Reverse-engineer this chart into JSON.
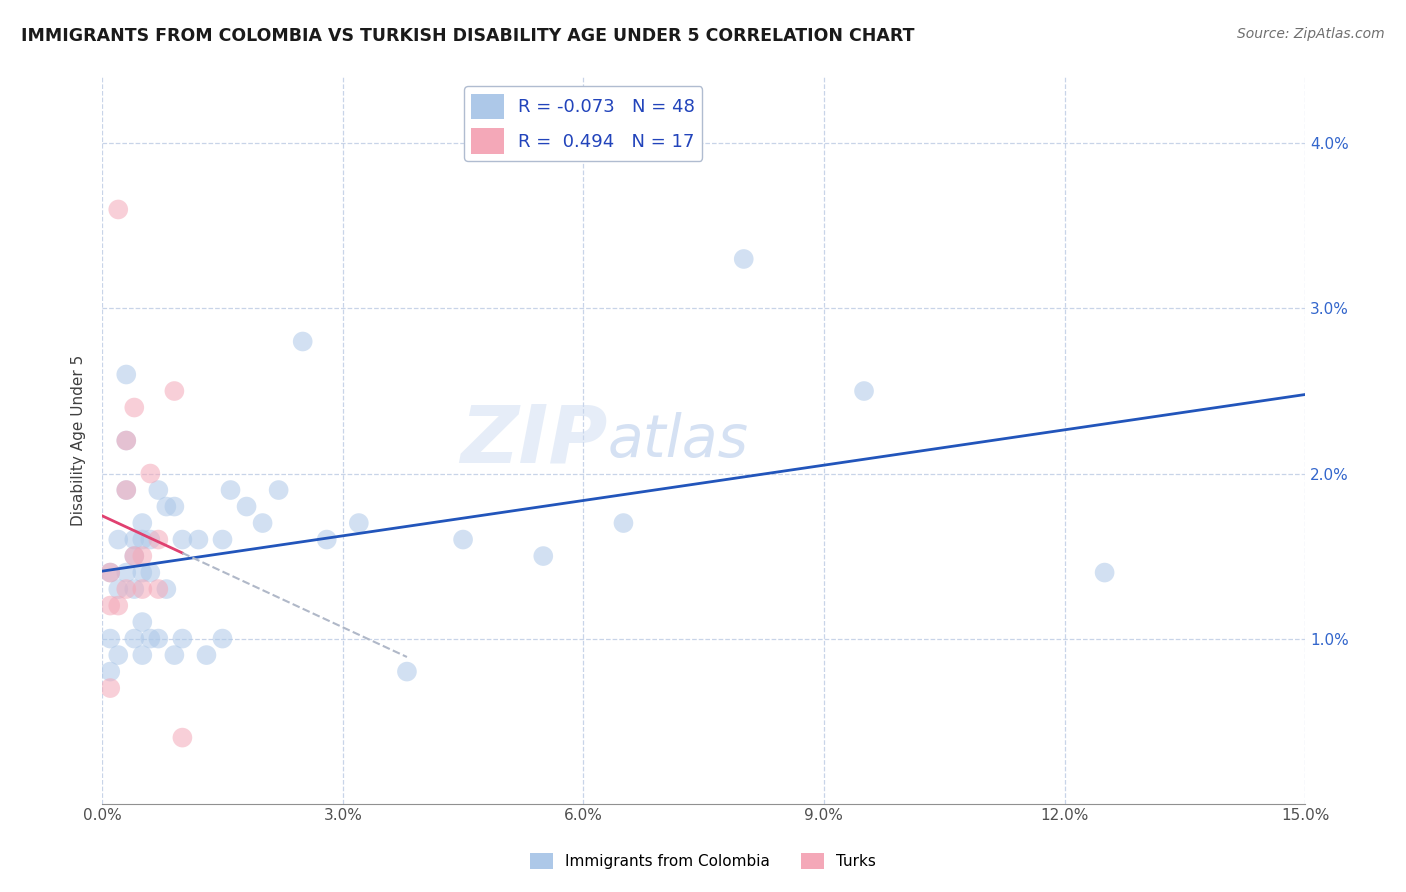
{
  "title": "IMMIGRANTS FROM COLOMBIA VS TURKISH DISABILITY AGE UNDER 5 CORRELATION CHART",
  "source": "Source: ZipAtlas.com",
  "ylabel": "Disability Age Under 5",
  "xlim": [
    0.0,
    0.15
  ],
  "ylim": [
    0.0,
    0.044
  ],
  "xticks": [
    0.0,
    0.03,
    0.06,
    0.09,
    0.12,
    0.15
  ],
  "yticks": [
    0.01,
    0.02,
    0.03,
    0.04
  ],
  "ytick_labels": [
    "1.0%",
    "2.0%",
    "3.0%",
    "4.0%"
  ],
  "xtick_labels": [
    "0.0%",
    "3.0%",
    "6.0%",
    "9.0%",
    "12.0%",
    "15.0%"
  ],
  "blue_R": -0.073,
  "blue_N": 48,
  "pink_R": 0.494,
  "pink_N": 17,
  "blue_color": "#adc8e8",
  "pink_color": "#f4a8b8",
  "blue_line_color": "#2255bb",
  "pink_line_color": "#e04070",
  "watermark_zip": "ZIP",
  "watermark_atlas": "atlas",
  "legend_label_blue": "Immigrants from Colombia",
  "legend_label_pink": "Turks",
  "blue_x": [
    0.001,
    0.001,
    0.001,
    0.002,
    0.002,
    0.002,
    0.003,
    0.003,
    0.003,
    0.003,
    0.004,
    0.004,
    0.004,
    0.004,
    0.005,
    0.005,
    0.005,
    0.005,
    0.005,
    0.006,
    0.006,
    0.006,
    0.007,
    0.007,
    0.008,
    0.008,
    0.009,
    0.009,
    0.01,
    0.01,
    0.012,
    0.013,
    0.015,
    0.015,
    0.016,
    0.018,
    0.02,
    0.022,
    0.025,
    0.028,
    0.032,
    0.038,
    0.045,
    0.055,
    0.065,
    0.08,
    0.095,
    0.125
  ],
  "blue_y": [
    0.014,
    0.01,
    0.008,
    0.016,
    0.013,
    0.009,
    0.026,
    0.022,
    0.019,
    0.014,
    0.016,
    0.015,
    0.013,
    0.01,
    0.017,
    0.016,
    0.014,
    0.011,
    0.009,
    0.016,
    0.014,
    0.01,
    0.019,
    0.01,
    0.018,
    0.013,
    0.018,
    0.009,
    0.016,
    0.01,
    0.016,
    0.009,
    0.016,
    0.01,
    0.019,
    0.018,
    0.017,
    0.019,
    0.028,
    0.016,
    0.017,
    0.008,
    0.016,
    0.015,
    0.017,
    0.033,
    0.025,
    0.014
  ],
  "pink_x": [
    0.001,
    0.001,
    0.001,
    0.002,
    0.002,
    0.003,
    0.003,
    0.003,
    0.004,
    0.004,
    0.005,
    0.005,
    0.006,
    0.007,
    0.007,
    0.009,
    0.01
  ],
  "pink_y": [
    0.014,
    0.012,
    0.007,
    0.036,
    0.012,
    0.022,
    0.019,
    0.013,
    0.024,
    0.015,
    0.015,
    0.013,
    0.02,
    0.016,
    0.013,
    0.025,
    0.004
  ],
  "background_color": "#ffffff",
  "grid_color": "#c8d4e8",
  "dot_size": 200,
  "dot_alpha": 0.55
}
